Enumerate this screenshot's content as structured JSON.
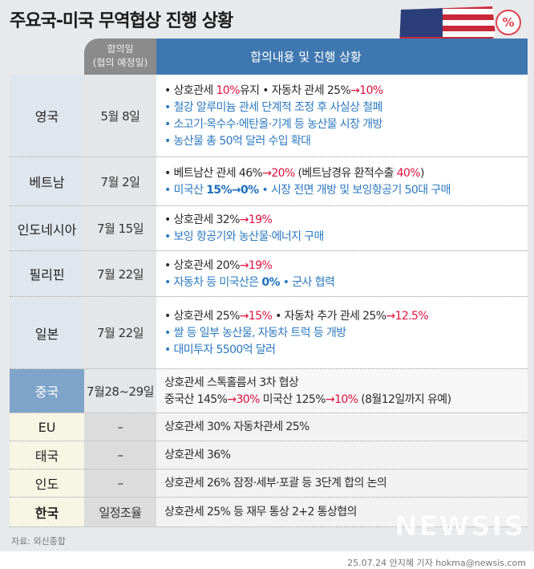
{
  "title": "주요국-미국 무역협상 진행 상황",
  "badge": "%",
  "header": {
    "date_line1": "합의일",
    "date_line2": "(협의 예정일)",
    "content": "합의내용 및 진행 상황"
  },
  "rows": [
    {
      "country": "영국",
      "date": "5월 8일",
      "group": "top",
      "lines": [
        [
          {
            "t": "• 상호관세 ",
            "s": "n"
          },
          {
            "t": "10%",
            "s": "r"
          },
          {
            "t": "유지  • 자동차 관세 25%",
            "s": "n"
          },
          {
            "t": "→10%",
            "s": "r"
          }
        ],
        [
          {
            "t": "• 철강 알루미늄 관세 단계적 조정 후 사실상 철폐",
            "s": "b"
          }
        ],
        [
          {
            "t": "• 소고기·옥수수·에탄올·기계 등 농산물 시장 개방",
            "s": "b"
          }
        ],
        [
          {
            "t": "• 농산물 총 50억 달러 수입 확대",
            "s": "b"
          }
        ]
      ]
    },
    {
      "country": "베트남",
      "date": "7월 2일",
      "group": "top",
      "lines": [
        [
          {
            "t": "• 베트남산 관세 46%",
            "s": "n"
          },
          {
            "t": "→20%",
            "s": "r"
          },
          {
            "t": " (베트남경유 환적수출 ",
            "s": "n"
          },
          {
            "t": "40%",
            "s": "r"
          },
          {
            "t": ")",
            "s": "n"
          }
        ],
        [
          {
            "t": "• 미국산 ",
            "s": "b"
          },
          {
            "t": "15%→0%",
            "s": "bb"
          },
          {
            "t": "  • 시장 전면 개방 및 보잉항공기 50대 구매",
            "s": "b"
          }
        ]
      ]
    },
    {
      "country": "인도네시아",
      "date": "7월 15일",
      "group": "top",
      "lines": [
        [
          {
            "t": "• 상호관세 32%",
            "s": "n"
          },
          {
            "t": "→19%",
            "s": "r"
          }
        ],
        [
          {
            "t": "• 보잉 항공기와 농산물·에너지 구매",
            "s": "b"
          }
        ]
      ]
    },
    {
      "country": "필리핀",
      "date": "7월 22일",
      "group": "top",
      "lines": [
        [
          {
            "t": "• 상호관세 20%",
            "s": "n"
          },
          {
            "t": "→19%",
            "s": "r"
          }
        ],
        [
          {
            "t": "• 자동차 등 미국산은 ",
            "s": "b"
          },
          {
            "t": "0%",
            "s": "bb"
          },
          {
            "t": " • 군사 협력",
            "s": "b"
          }
        ]
      ]
    },
    {
      "country": "일본",
      "date": "7월 22일",
      "group": "top",
      "lines": [
        [
          {
            "t": "• 상호관세 25%",
            "s": "n"
          },
          {
            "t": "→15%",
            "s": "r"
          },
          {
            "t": "  • 자동차 추가 관세 25%",
            "s": "n"
          },
          {
            "t": "→12.5%",
            "s": "r"
          }
        ],
        [
          {
            "t": "• 쌀 등 일부 농산물, 자동차 트럭 등 개방",
            "s": "b"
          }
        ],
        [
          {
            "t": "• 대미투자 5500억 달러",
            "s": "b"
          }
        ]
      ]
    },
    {
      "country": "중국",
      "date": "7월28~29일",
      "group": "cn",
      "lines": [
        [
          {
            "t": "상호관세 스톡홀름서 3차 협상",
            "s": "n"
          }
        ],
        [
          {
            "t": "중국산 145%",
            "s": "n"
          },
          {
            "t": "→30%",
            "s": "r"
          },
          {
            "t": " 미국산 125%",
            "s": "n"
          },
          {
            "t": "→10%",
            "s": "r"
          },
          {
            "t": " (8월12일까지 유예)",
            "s": "n"
          }
        ]
      ]
    },
    {
      "country": "EU",
      "date": "–",
      "group": "low",
      "lines": [
        [
          {
            "t": "상호관세 30% 자동차관세 25%",
            "s": "n"
          }
        ]
      ]
    },
    {
      "country": "태국",
      "date": "–",
      "group": "low",
      "lines": [
        [
          {
            "t": "상호관세 36%",
            "s": "n"
          }
        ]
      ]
    },
    {
      "country": "인도",
      "date": "–",
      "group": "low",
      "lines": [
        [
          {
            "t": "상호관세 26% 잠정·세부·포괄 등 3단계 합의 논의",
            "s": "n"
          }
        ]
      ]
    },
    {
      "country": "한국",
      "date": "일정조율",
      "group": "kr",
      "lines": [
        [
          {
            "t": "상호관세 25% 등 재무 통상 2+2 통상협의",
            "s": "n"
          }
        ]
      ]
    }
  ],
  "source": "자료: 외신종합",
  "logo": "뉴시스",
  "credit": "25.07.24 안지혜 기자 hokma@newsis.com",
  "colors": {
    "header_blue": "#3f78b0",
    "red": "#e0103f",
    "blue_text": "#2b78c0"
  }
}
